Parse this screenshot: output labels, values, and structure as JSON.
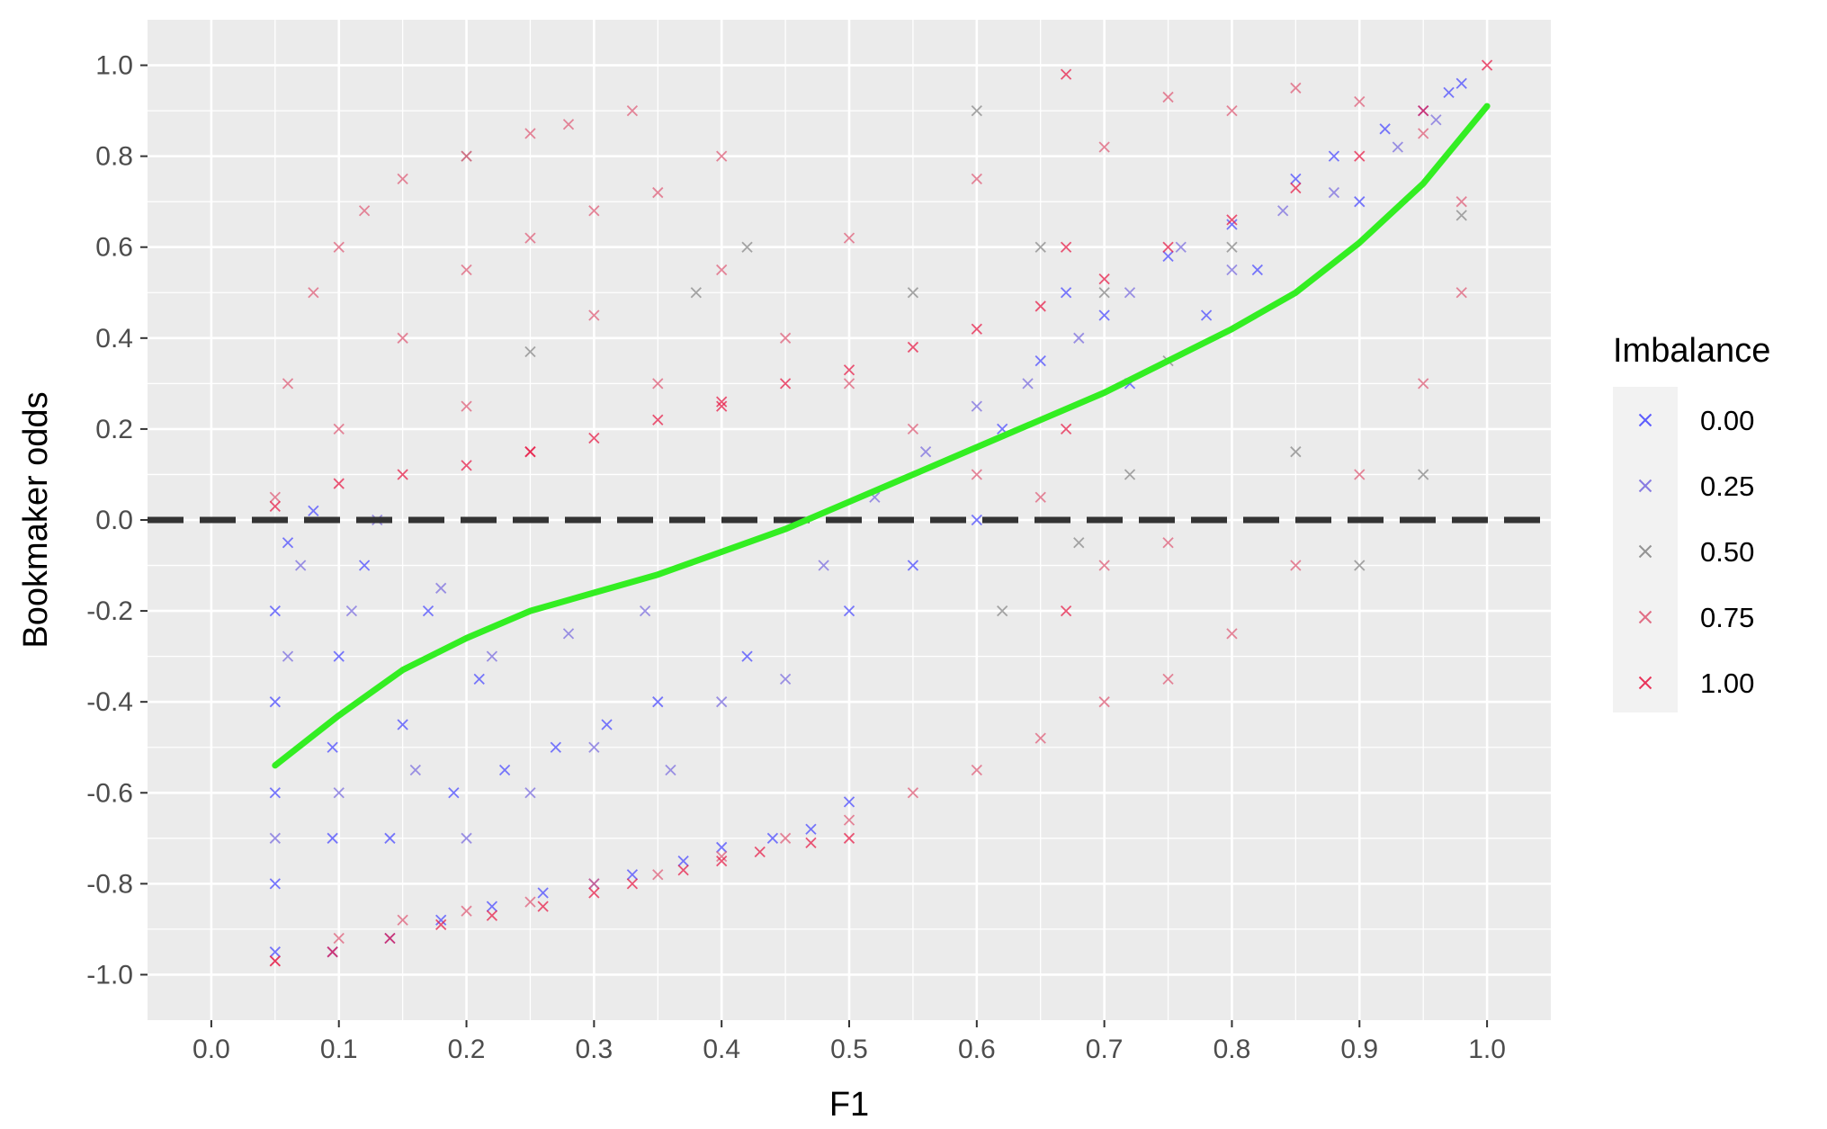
{
  "chart_data": {
    "type": "scatter",
    "title": "",
    "xlabel": "F1",
    "ylabel": "Bookmaker odds",
    "xlim": [
      -0.05,
      1.05
    ],
    "ylim": [
      -1.1,
      1.1
    ],
    "x_ticks": [
      "0.0",
      "0.1",
      "0.2",
      "0.3",
      "0.4",
      "0.5",
      "0.6",
      "0.7",
      "0.8",
      "0.9",
      "1.0"
    ],
    "y_ticks": [
      "-1.0",
      "-0.8",
      "-0.6",
      "-0.4",
      "-0.2",
      "0.0",
      "0.2",
      "0.4",
      "0.6",
      "0.8",
      "1.0"
    ],
    "grid": true,
    "panel_background": "#ebebeb",
    "grid_color": "#ffffff",
    "legend": {
      "title": "Imbalance",
      "placement": "right",
      "marker": "cross",
      "entries": [
        {
          "label": "0.00",
          "color": "#4d4dff"
        },
        {
          "label": "0.25",
          "color": "#7d6fe0"
        },
        {
          "label": "0.50",
          "color": "#8a8a8a"
        },
        {
          "label": "0.75",
          "color": "#e0607a"
        },
        {
          "label": "1.00",
          "color": "#e8204a"
        }
      ]
    },
    "reference_line": {
      "y": 0.0,
      "style": "dashed",
      "color": "#333333"
    },
    "smooth_line": {
      "color": "#33ee22",
      "x": [
        0.05,
        0.1,
        0.15,
        0.2,
        0.25,
        0.3,
        0.35,
        0.4,
        0.45,
        0.5,
        0.55,
        0.6,
        0.65,
        0.7,
        0.75,
        0.8,
        0.85,
        0.9,
        0.95,
        1.0
      ],
      "y": [
        -0.54,
        -0.43,
        -0.33,
        -0.26,
        -0.2,
        -0.16,
        -0.12,
        -0.07,
        -0.02,
        0.04,
        0.1,
        0.16,
        0.22,
        0.28,
        0.35,
        0.42,
        0.5,
        0.61,
        0.74,
        0.91
      ]
    },
    "series": [
      {
        "name": "0.00",
        "color": "#4d4dff",
        "points": [
          [
            0.05,
            -0.95
          ],
          [
            0.05,
            -0.8
          ],
          [
            0.05,
            -0.6
          ],
          [
            0.05,
            -0.4
          ],
          [
            0.05,
            -0.2
          ],
          [
            0.06,
            -0.05
          ],
          [
            0.08,
            0.02
          ],
          [
            0.095,
            -0.95
          ],
          [
            0.095,
            -0.7
          ],
          [
            0.095,
            -0.5
          ],
          [
            0.1,
            -0.3
          ],
          [
            0.12,
            -0.1
          ],
          [
            0.14,
            -0.92
          ],
          [
            0.14,
            -0.7
          ],
          [
            0.15,
            -0.45
          ],
          [
            0.17,
            -0.2
          ],
          [
            0.18,
            -0.88
          ],
          [
            0.19,
            -0.6
          ],
          [
            0.21,
            -0.35
          ],
          [
            0.22,
            -0.85
          ],
          [
            0.23,
            -0.55
          ],
          [
            0.26,
            -0.82
          ],
          [
            0.27,
            -0.5
          ],
          [
            0.3,
            -0.8
          ],
          [
            0.31,
            -0.45
          ],
          [
            0.33,
            -0.78
          ],
          [
            0.35,
            -0.4
          ],
          [
            0.37,
            -0.75
          ],
          [
            0.4,
            -0.72
          ],
          [
            0.42,
            -0.3
          ],
          [
            0.44,
            -0.7
          ],
          [
            0.47,
            -0.68
          ],
          [
            0.5,
            -0.62
          ],
          [
            0.5,
            -0.2
          ],
          [
            0.55,
            -0.1
          ],
          [
            0.6,
            0.0
          ],
          [
            0.62,
            0.2
          ],
          [
            0.65,
            0.35
          ],
          [
            0.67,
            0.5
          ],
          [
            0.7,
            0.45
          ],
          [
            0.75,
            0.58
          ],
          [
            0.8,
            0.65
          ],
          [
            0.85,
            0.75
          ],
          [
            0.88,
            0.8
          ],
          [
            0.92,
            0.86
          ],
          [
            0.95,
            0.9
          ],
          [
            0.97,
            0.94
          ],
          [
            0.98,
            0.96
          ],
          [
            0.72,
            0.3
          ],
          [
            0.78,
            0.45
          ],
          [
            0.82,
            0.55
          ],
          [
            0.9,
            0.7
          ]
        ]
      },
      {
        "name": "0.25",
        "color": "#7d6fe0",
        "points": [
          [
            0.05,
            -0.7
          ],
          [
            0.06,
            -0.3
          ],
          [
            0.07,
            -0.1
          ],
          [
            0.1,
            -0.6
          ],
          [
            0.11,
            -0.2
          ],
          [
            0.13,
            0.0
          ],
          [
            0.16,
            -0.55
          ],
          [
            0.18,
            -0.15
          ],
          [
            0.2,
            -0.7
          ],
          [
            0.22,
            -0.3
          ],
          [
            0.25,
            -0.6
          ],
          [
            0.28,
            -0.25
          ],
          [
            0.3,
            -0.5
          ],
          [
            0.34,
            -0.2
          ],
          [
            0.36,
            -0.55
          ],
          [
            0.4,
            -0.4
          ],
          [
            0.45,
            -0.35
          ],
          [
            0.48,
            -0.1
          ],
          [
            0.52,
            0.05
          ],
          [
            0.56,
            0.15
          ],
          [
            0.6,
            0.25
          ],
          [
            0.64,
            0.3
          ],
          [
            0.68,
            0.4
          ],
          [
            0.72,
            0.5
          ],
          [
            0.76,
            0.6
          ],
          [
            0.8,
            0.55
          ],
          [
            0.84,
            0.68
          ],
          [
            0.88,
            0.72
          ],
          [
            0.93,
            0.82
          ],
          [
            0.96,
            0.88
          ]
        ]
      },
      {
        "name": "0.50",
        "color": "#8a8a8a",
        "points": [
          [
            0.2,
            0.8
          ],
          [
            0.25,
            0.37
          ],
          [
            0.38,
            0.5
          ],
          [
            0.42,
            0.6
          ],
          [
            0.55,
            0.5
          ],
          [
            0.6,
            0.9
          ],
          [
            0.65,
            0.6
          ],
          [
            0.7,
            0.5
          ],
          [
            0.75,
            0.35
          ],
          [
            0.8,
            0.6
          ],
          [
            0.85,
            0.15
          ],
          [
            0.9,
            -0.1
          ],
          [
            0.95,
            0.1
          ],
          [
            0.98,
            0.67
          ],
          [
            0.62,
            -0.2
          ],
          [
            0.68,
            -0.05
          ],
          [
            0.72,
            0.1
          ]
        ]
      },
      {
        "name": "0.75",
        "color": "#e0607a",
        "points": [
          [
            0.05,
            0.05
          ],
          [
            0.06,
            0.3
          ],
          [
            0.08,
            0.5
          ],
          [
            0.1,
            0.6
          ],
          [
            0.12,
            0.68
          ],
          [
            0.15,
            0.75
          ],
          [
            0.2,
            0.8
          ],
          [
            0.25,
            0.85
          ],
          [
            0.1,
            0.2
          ],
          [
            0.15,
            0.4
          ],
          [
            0.2,
            0.55
          ],
          [
            0.25,
            0.62
          ],
          [
            0.3,
            0.68
          ],
          [
            0.35,
            0.72
          ],
          [
            0.4,
            0.8
          ],
          [
            0.2,
            0.25
          ],
          [
            0.3,
            0.45
          ],
          [
            0.4,
            0.55
          ],
          [
            0.5,
            0.62
          ],
          [
            0.6,
            0.75
          ],
          [
            0.7,
            0.82
          ],
          [
            0.75,
            0.93
          ],
          [
            0.8,
            0.9
          ],
          [
            0.85,
            0.95
          ],
          [
            0.9,
            0.92
          ],
          [
            0.95,
            0.85
          ],
          [
            0.98,
            0.7
          ],
          [
            0.98,
            0.5
          ],
          [
            0.95,
            0.3
          ],
          [
            0.9,
            0.1
          ],
          [
            0.85,
            -0.1
          ],
          [
            0.8,
            -0.25
          ],
          [
            0.75,
            -0.35
          ],
          [
            0.7,
            -0.4
          ],
          [
            0.65,
            -0.48
          ],
          [
            0.6,
            -0.55
          ],
          [
            0.55,
            -0.6
          ],
          [
            0.5,
            -0.66
          ],
          [
            0.45,
            -0.7
          ],
          [
            0.4,
            -0.74
          ],
          [
            0.35,
            -0.78
          ],
          [
            0.3,
            -0.8
          ],
          [
            0.25,
            -0.84
          ],
          [
            0.2,
            -0.86
          ],
          [
            0.15,
            -0.88
          ],
          [
            0.1,
            -0.92
          ],
          [
            0.05,
            -0.97
          ],
          [
            0.5,
            0.3
          ],
          [
            0.55,
            0.2
          ],
          [
            0.6,
            0.1
          ],
          [
            0.65,
            0.05
          ],
          [
            0.7,
            -0.1
          ],
          [
            0.75,
            -0.05
          ],
          [
            0.45,
            0.4
          ],
          [
            0.35,
            0.3
          ],
          [
            0.33,
            0.9
          ],
          [
            0.28,
            0.87
          ]
        ]
      },
      {
        "name": "1.00",
        "color": "#e8204a",
        "points": [
          [
            0.05,
            0.03
          ],
          [
            0.1,
            0.08
          ],
          [
            0.15,
            0.1
          ],
          [
            0.2,
            0.12
          ],
          [
            0.25,
            0.15
          ],
          [
            0.3,
            0.18
          ],
          [
            0.35,
            0.22
          ],
          [
            0.4,
            0.26
          ],
          [
            0.45,
            0.3
          ],
          [
            0.5,
            0.33
          ],
          [
            0.55,
            0.38
          ],
          [
            0.6,
            0.42
          ],
          [
            0.65,
            0.47
          ],
          [
            0.7,
            0.53
          ],
          [
            0.75,
            0.6
          ],
          [
            0.8,
            0.66
          ],
          [
            0.85,
            0.73
          ],
          [
            0.9,
            0.8
          ],
          [
            0.95,
            0.9
          ],
          [
            1.0,
            1.0
          ],
          [
            0.05,
            -0.97
          ],
          [
            0.095,
            -0.95
          ],
          [
            0.14,
            -0.92
          ],
          [
            0.18,
            -0.89
          ],
          [
            0.22,
            -0.87
          ],
          [
            0.26,
            -0.85
          ],
          [
            0.3,
            -0.82
          ],
          [
            0.33,
            -0.8
          ],
          [
            0.37,
            -0.77
          ],
          [
            0.4,
            -0.75
          ],
          [
            0.43,
            -0.73
          ],
          [
            0.47,
            -0.71
          ],
          [
            0.5,
            -0.7
          ],
          [
            0.67,
            0.98
          ],
          [
            0.67,
            0.6
          ],
          [
            0.67,
            0.2
          ],
          [
            0.67,
            -0.2
          ],
          [
            0.25,
            0.15
          ],
          [
            0.4,
            0.25
          ]
        ]
      }
    ]
  }
}
